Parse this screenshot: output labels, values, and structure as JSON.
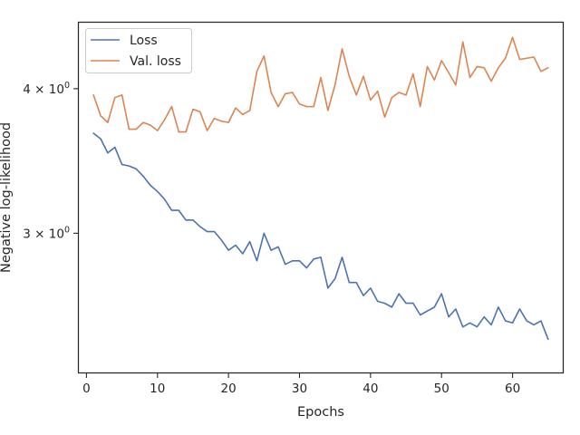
{
  "chart_data": {
    "type": "line",
    "xlabel": "Epochs",
    "ylabel": "Negative log-likelihood",
    "yscale": "log",
    "xlim": [
      -1.2,
      67.2
    ],
    "ylim": [
      2.27,
      4.57
    ],
    "xticks": [
      0,
      10,
      20,
      30,
      40,
      50,
      60
    ],
    "xtick_labels": [
      "0",
      "10",
      "20",
      "30",
      "40",
      "50",
      "60"
    ],
    "yticks": [
      3,
      4
    ],
    "ytick_labels": [
      {
        "base": "3 × 10",
        "exp": "0"
      },
      {
        "base": "4 × 10",
        "exp": "0"
      }
    ],
    "grid": false,
    "legend_position": "upper-left",
    "x": [
      1,
      2,
      3,
      4,
      5,
      6,
      7,
      8,
      9,
      10,
      11,
      12,
      13,
      14,
      15,
      16,
      17,
      18,
      19,
      20,
      21,
      22,
      23,
      24,
      25,
      26,
      27,
      28,
      29,
      30,
      31,
      32,
      33,
      34,
      35,
      36,
      37,
      38,
      39,
      40,
      41,
      42,
      43,
      44,
      45,
      46,
      47,
      48,
      49,
      50,
      51,
      52,
      53,
      54,
      55,
      56,
      57,
      58,
      59,
      60,
      61,
      62,
      63,
      64,
      65
    ],
    "series": [
      {
        "name": "Loss",
        "color": "#4c72b0",
        "values": [
          3.66,
          3.62,
          3.52,
          3.56,
          3.44,
          3.43,
          3.41,
          3.36,
          3.3,
          3.26,
          3.21,
          3.14,
          3.14,
          3.08,
          3.08,
          3.04,
          3.01,
          3.01,
          2.96,
          2.9,
          2.93,
          2.88,
          2.95,
          2.84,
          3.0,
          2.9,
          2.92,
          2.82,
          2.84,
          2.84,
          2.8,
          2.85,
          2.86,
          2.69,
          2.74,
          2.86,
          2.72,
          2.72,
          2.65,
          2.69,
          2.62,
          2.61,
          2.59,
          2.66,
          2.61,
          2.61,
          2.55,
          2.57,
          2.59,
          2.66,
          2.54,
          2.58,
          2.49,
          2.51,
          2.49,
          2.54,
          2.5,
          2.59,
          2.52,
          2.51,
          2.58,
          2.52,
          2.5,
          2.52,
          2.43
        ]
      },
      {
        "name": "Val. loss",
        "color": "#dd8452",
        "values": [
          3.95,
          3.79,
          3.74,
          3.93,
          3.95,
          3.69,
          3.69,
          3.74,
          3.72,
          3.68,
          3.76,
          3.86,
          3.67,
          3.67,
          3.84,
          3.82,
          3.68,
          3.77,
          3.75,
          3.74,
          3.85,
          3.8,
          3.83,
          4.14,
          4.27,
          3.97,
          3.86,
          3.96,
          3.97,
          3.88,
          3.86,
          3.86,
          4.09,
          3.83,
          4.03,
          4.33,
          4.1,
          3.95,
          4.1,
          3.91,
          3.98,
          3.78,
          3.93,
          3.97,
          3.95,
          4.12,
          3.86,
          4.18,
          4.07,
          4.23,
          4.13,
          4.03,
          4.39,
          4.09,
          4.18,
          4.17,
          4.06,
          4.17,
          4.25,
          4.43,
          4.24,
          4.25,
          4.26,
          4.14,
          4.17
        ]
      }
    ]
  }
}
